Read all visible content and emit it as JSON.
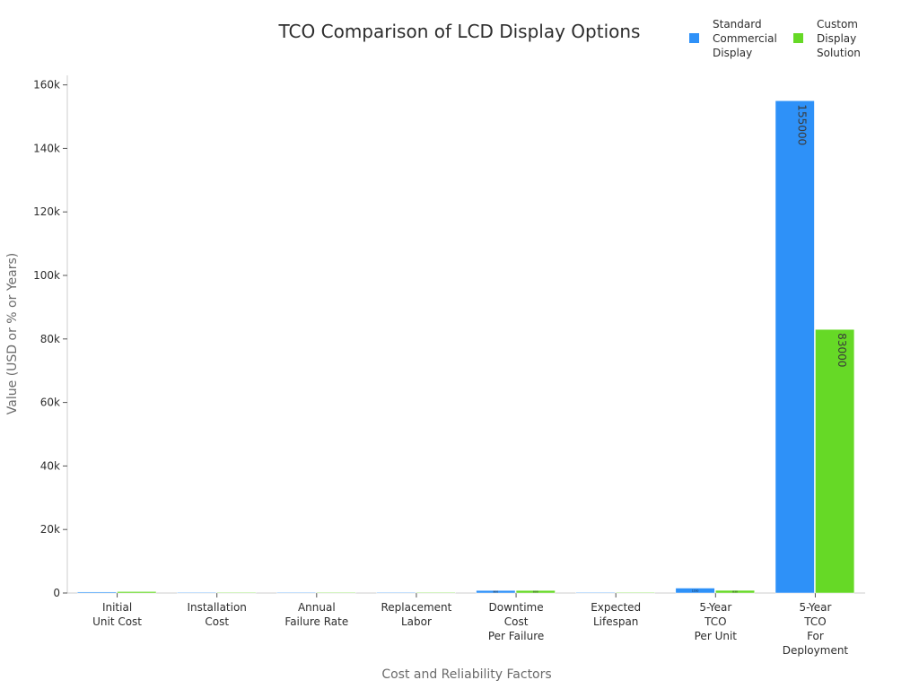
{
  "chart_data": {
    "type": "bar",
    "title": "TCO Comparison of LCD Display Options",
    "xlabel": "Cost and Reliability Factors",
    "ylabel": "Value (USD or % or Years)",
    "ylim": [
      0,
      163000
    ],
    "yticks": [
      {
        "value": 0,
        "label": "0"
      },
      {
        "value": 20000,
        "label": "20k"
      },
      {
        "value": 40000,
        "label": "40k"
      },
      {
        "value": 60000,
        "label": "60k"
      },
      {
        "value": 80000,
        "label": "80k"
      },
      {
        "value": 100000,
        "label": "100k"
      },
      {
        "value": 120000,
        "label": "120k"
      },
      {
        "value": 140000,
        "label": "140k"
      },
      {
        "value": 160000,
        "label": "160k"
      }
    ],
    "categories": [
      [
        "Initial",
        "Unit Cost"
      ],
      [
        "Installation",
        "Cost"
      ],
      [
        "Annual",
        "Failure Rate"
      ],
      [
        "Replacement",
        "Labor"
      ],
      [
        "Downtime",
        "Cost",
        "Per Failure"
      ],
      [
        "Expected",
        "Lifespan"
      ],
      [
        "5-Year",
        "TCO",
        "Per Unit"
      ],
      [
        "5-Year",
        "TCO",
        "For",
        "Deployment"
      ]
    ],
    "series": [
      {
        "name": [
          "Standard",
          "Commercial",
          "Display"
        ],
        "color": "#2e91f8",
        "values": [
          320,
          150,
          5,
          200,
          800,
          3,
          1550,
          155000
        ],
        "labels": [
          "",
          "",
          "",
          "",
          "800",
          "",
          "1550",
          "155000"
        ]
      },
      {
        "name": [
          "Custom",
          "Display",
          "Solution"
        ],
        "color": "#66d926",
        "values": [
          450,
          100,
          1,
          120,
          800,
          7,
          830,
          83000
        ],
        "labels": [
          "",
          "",
          "",
          "",
          "800",
          "",
          "830",
          "83000"
        ]
      }
    ],
    "legend_position": "top-right",
    "grid": false
  }
}
